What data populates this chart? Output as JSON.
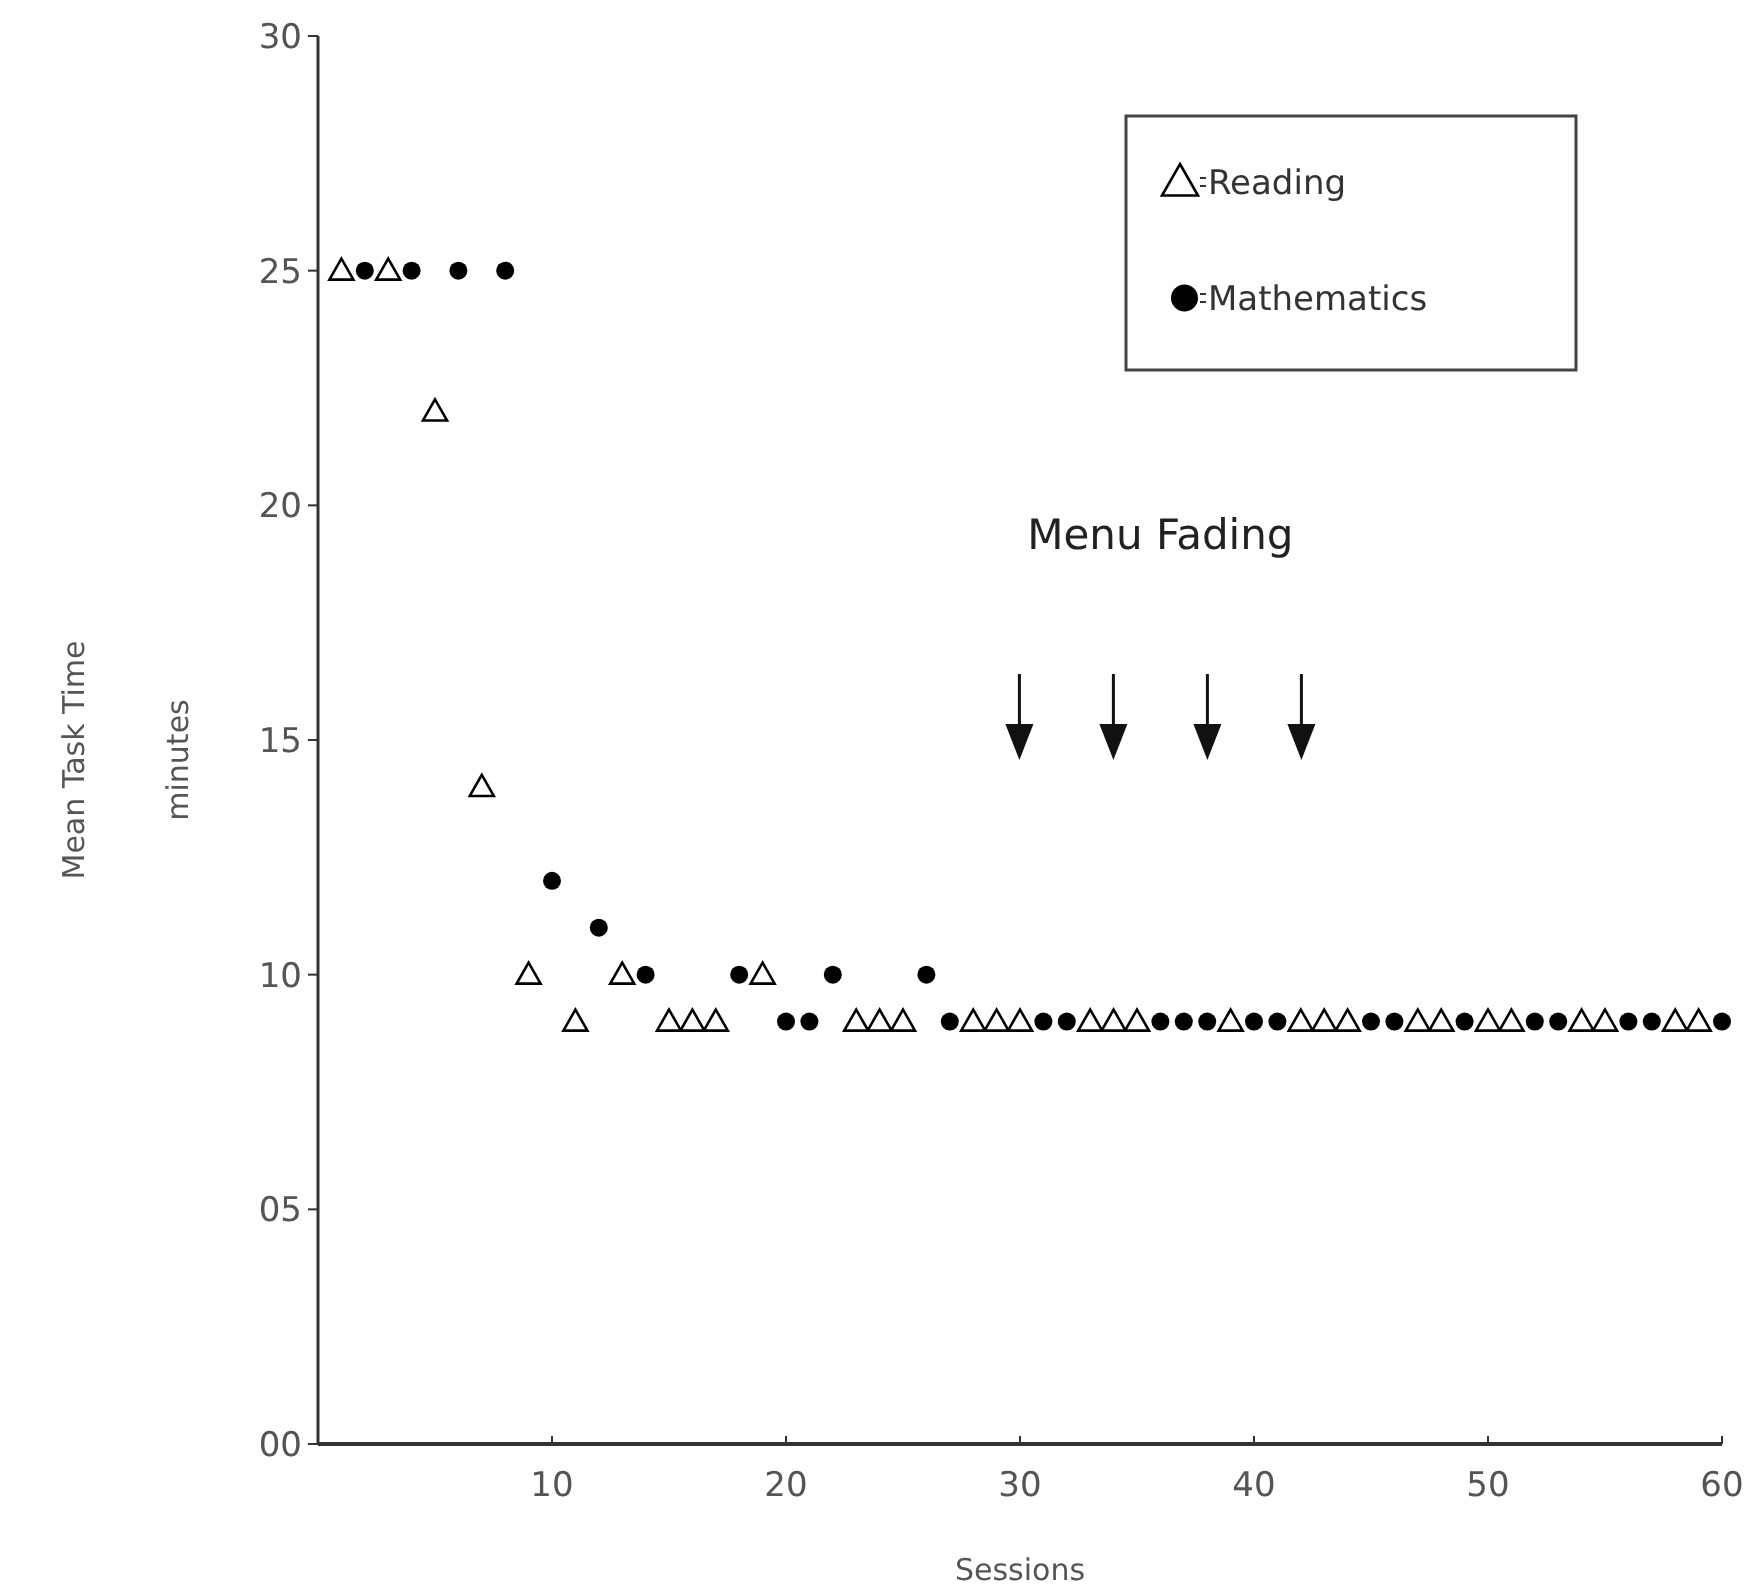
{
  "chart_data": {
    "type": "scatter",
    "xlabel": "Sessions",
    "ylabel": "Mean Task Time\nminutes",
    "xlim": [
      0,
      60
    ],
    "xticks": [
      10,
      20,
      30,
      40,
      50,
      60
    ],
    "ylim": [
      0,
      30
    ],
    "yticks": [
      {
        "value": 0,
        "label": "00"
      },
      {
        "value": 5,
        "label": "05"
      },
      10,
      15,
      20,
      25,
      30
    ],
    "legend": "top right",
    "grid": false,
    "annotations": [
      "Menu Fading"
    ],
    "series": [
      {
        "name": "Reading",
        "color": "#000000",
        "marker": "triangle",
        "x": [
          1,
          3,
          5,
          7,
          9,
          11,
          13,
          15,
          16,
          17,
          19,
          23,
          24,
          25,
          28,
          29,
          30,
          33,
          34,
          35,
          39,
          42,
          43,
          44,
          47,
          48,
          50,
          51,
          54,
          55,
          58,
          59
        ],
        "values": [
          25,
          25,
          22,
          14,
          10,
          9,
          10,
          9,
          9,
          9,
          10,
          9,
          9,
          9,
          9,
          9,
          9,
          9,
          9,
          9,
          9,
          9,
          9,
          9,
          9,
          9,
          9,
          9,
          9,
          9,
          9,
          9
        ]
      },
      {
        "name": "Mathematics",
        "color": "#000000",
        "marker": "circle",
        "x": [
          2,
          4,
          6,
          8,
          10,
          12,
          14,
          18,
          20,
          21,
          22,
          26,
          27,
          31,
          32,
          36,
          37,
          38,
          40,
          41,
          45,
          46,
          49,
          52,
          53,
          56,
          57,
          60
        ],
        "values": [
          25,
          25,
          25,
          25,
          12,
          11,
          10,
          10,
          9,
          9,
          10,
          10,
          9,
          9,
          9,
          9,
          9,
          9,
          9,
          9,
          9,
          9,
          9,
          9,
          9,
          9,
          9,
          9
        ]
      }
    ]
  }
}
